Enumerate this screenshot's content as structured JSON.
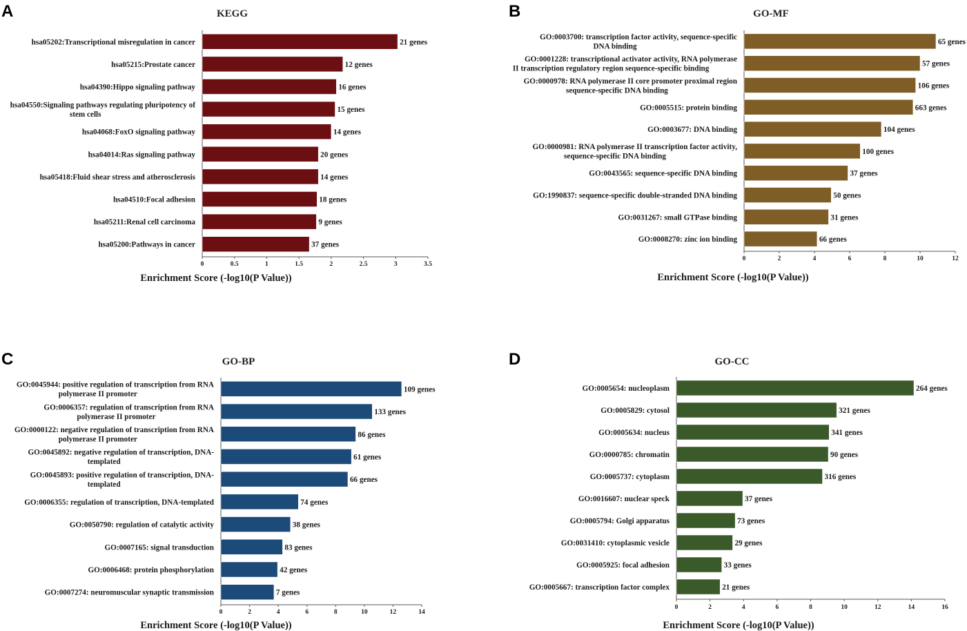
{
  "chart_data": [
    {
      "panel": "A",
      "type": "bar",
      "orientation": "horizontal",
      "title": "KEGG",
      "xlabel": "Enrichment Score (-log10(P Value))",
      "xlim": [
        0,
        3.5
      ],
      "xticks": [
        "0",
        "0.5",
        "1",
        "1.5",
        "2",
        "2.5",
        "3",
        "3.5"
      ],
      "color": "#6b0f12",
      "categories": [
        [
          "hsa05202:Transcriptional misregulation in cancer"
        ],
        [
          "hsa05215:Prostate cancer"
        ],
        [
          "hsa04390:Hippo signaling pathway"
        ],
        [
          "hsa04550:Signaling pathways regulating pluripotency of",
          "stem cells"
        ],
        [
          "hsa04068:FoxO signaling pathway"
        ],
        [
          "hsa04014:Ras signaling pathway"
        ],
        [
          "hsa05418:Fluid shear stress and atherosclerosis"
        ],
        [
          "hsa04510:Focal adhesion"
        ],
        [
          "hsa05211:Renal cell carcinoma"
        ],
        [
          "hsa05200:Pathways in cancer"
        ]
      ],
      "values": [
        3.03,
        2.18,
        2.08,
        2.06,
        2.0,
        1.8,
        1.8,
        1.78,
        1.77,
        1.66
      ],
      "labels": [
        "21 genes",
        "12 genes",
        "16 genes",
        "15 genes",
        "14 genes",
        "20 genes",
        "14 genes",
        "18 genes",
        "9 genes",
        "37 genes"
      ]
    },
    {
      "panel": "B",
      "type": "bar",
      "orientation": "horizontal",
      "title": "GO-MF",
      "xlabel": "Enrichment Score (-log10(P Value))",
      "xlim": [
        0,
        12
      ],
      "xticks": [
        "0",
        "2",
        "4",
        "6",
        "8",
        "10",
        "12"
      ],
      "color": "#7f5d27",
      "categories": [
        [
          "GO:0003700: transcription factor activity, sequence-specific",
          "DNA binding"
        ],
        [
          "GO:0001228: transcriptional activator activity, RNA polymerase",
          "II transcription regulatory region sequence-specific binding"
        ],
        [
          "GO:0000978: RNA polymerase II core promoter proximal region",
          "sequence-specific DNA binding"
        ],
        [
          "GO:0005515: protein binding"
        ],
        [
          "GO:0003677: DNA binding"
        ],
        [
          "GO:0000981: RNA polymerase II transcription factor activity,",
          "sequence-specific DNA binding"
        ],
        [
          "GO:0043565: sequence-specific DNA binding"
        ],
        [
          "GO:1990837: sequence-specific double-stranded DNA binding"
        ],
        [
          "GO:0031267: small GTPase binding"
        ],
        [
          "GO:0008270: zinc ion binding"
        ]
      ],
      "values": [
        10.9,
        10.0,
        9.75,
        9.6,
        7.8,
        6.6,
        5.9,
        4.95,
        4.8,
        4.15
      ],
      "labels": [
        "65 genes",
        "57 genes",
        "106 genes",
        "663 genes",
        "104 genes",
        "100 genes",
        "37 genes",
        "50 genes",
        "31 genes",
        "66 genes"
      ]
    },
    {
      "panel": "C",
      "type": "bar",
      "orientation": "horizontal",
      "title": "GO-BP",
      "xlabel": "Enrichment Score (-log10(P Value))",
      "xlim": [
        0,
        14
      ],
      "xticks": [
        "0",
        "2",
        "4",
        "6",
        "8",
        "10",
        "12",
        "14"
      ],
      "color": "#1c4b79",
      "categories": [
        [
          "GO:0045944: positive regulation of transcription from RNA",
          "polymerase II promoter"
        ],
        [
          "GO:0006357: regulation of transcription from RNA",
          "polymerase II promoter"
        ],
        [
          "GO:0000122: negative regulation of transcription from RNA",
          "polymerase II promoter"
        ],
        [
          "GO:0045892: negative regulation of transcription, DNA-",
          "templated"
        ],
        [
          "GO:0045893: positive regulation of transcription, DNA-",
          "templated"
        ],
        [
          "GO:0006355: regulation of transcription, DNA-templated"
        ],
        [
          "GO:0050790: regulation of catalytic activity"
        ],
        [
          "GO:0007165: signal transduction"
        ],
        [
          "GO:0006468: protein phosphorylation"
        ],
        [
          "GO:0007274: neuromuscular synaptic transmission"
        ]
      ],
      "values": [
        12.6,
        10.55,
        9.4,
        9.1,
        8.85,
        5.4,
        4.85,
        4.3,
        3.95,
        3.7
      ],
      "labels": [
        "109 genes",
        "133 genes",
        "86 genes",
        "61 genes",
        "66 genes",
        "74 genes",
        "38 genes",
        "83 genes",
        "42 genes",
        "7 genes"
      ]
    },
    {
      "panel": "D",
      "type": "bar",
      "orientation": "horizontal",
      "title": "GO-CC",
      "xlabel": "Enrichment Score (-log10(P Value))",
      "xlim": [
        0,
        16
      ],
      "xticks": [
        "0",
        "2",
        "4",
        "6",
        "8",
        "10",
        "12",
        "14",
        "16"
      ],
      "color": "#3a5a2a",
      "categories": [
        [
          "GO:0005654: nucleoplasm"
        ],
        [
          "GO:0005829: cytosol"
        ],
        [
          "GO:0005634: nucleus"
        ],
        [
          "GO:0000785: chromatin"
        ],
        [
          "GO:0005737: cytoplasm"
        ],
        [
          "GO:0016607: nuclear speck"
        ],
        [
          "GO:0005794: Golgi apparatus"
        ],
        [
          "GO:0031410: cytoplasmic vesicle"
        ],
        [
          "GO:0005925: focal adhesion"
        ],
        [
          "GO:0005667: transcription factor complex"
        ]
      ],
      "values": [
        14.15,
        9.55,
        9.1,
        9.05,
        8.7,
        3.95,
        3.5,
        3.35,
        2.7,
        2.6
      ],
      "labels": [
        "264 genes",
        "321 genes",
        "341 genes",
        "90 genes",
        "316 genes",
        "37 genes",
        "73 genes",
        "29 genes",
        "33 genes",
        "21 genes"
      ]
    }
  ]
}
